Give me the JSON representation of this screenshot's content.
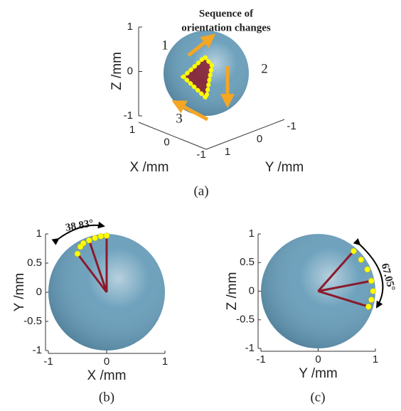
{
  "chart_data": [
    {
      "type": "sphere3d",
      "annotation": [
        "Sequence of",
        "orientation changes"
      ],
      "steps": [
        "1",
        "2",
        "3"
      ],
      "xlabel": "X /mm",
      "ylabel": "Y /mm",
      "zlabel": "Z /mm",
      "xlim": [
        -1,
        1
      ],
      "ylim": [
        -1,
        1
      ],
      "zlim": [
        -1,
        1
      ],
      "xticks": [
        1,
        0,
        -1
      ],
      "yticks": [
        -1,
        0,
        1
      ],
      "zticks": [
        -1,
        0,
        1
      ],
      "sphere_color": "#5f98b6",
      "arrow_color": "#f5a623",
      "caption": "(a)"
    },
    {
      "type": "sphere",
      "xlabel": "X /mm",
      "ylabel": "Y /mm",
      "annotation": "38.83°",
      "xlim": [
        -1,
        1
      ],
      "ylim": [
        -1,
        1
      ],
      "xticks": [
        -1,
        0,
        1
      ],
      "yticks": [
        -1,
        -0.5,
        0,
        0.5,
        1
      ],
      "sphere_color": "#5f98b6",
      "vector_color": "#8b1a2b",
      "series": [
        {
          "color": "#ffff00",
          "x": [
            0,
            -0.1,
            -0.2,
            -0.3,
            -0.4,
            -0.45,
            -0.5
          ],
          "values": [
            0.97,
            0.96,
            0.93,
            0.89,
            0.84,
            0.78,
            0.66
          ]
        }
      ],
      "caption": "(b)"
    },
    {
      "type": "sphere",
      "xlabel": "Y /mm",
      "ylabel": "Z /mm",
      "annotation": "67.05°",
      "xlim": [
        -1,
        1
      ],
      "ylim": [
        -1,
        1
      ],
      "xticks": [
        -1,
        0,
        1
      ],
      "yticks": [
        -1,
        -0.5,
        0,
        0.5,
        1
      ],
      "sphere_color": "#5f98b6",
      "vector_color": "#8b1a2b",
      "series": [
        {
          "color": "#ffff00",
          "x": [
            0.62,
            0.75,
            0.86,
            0.93,
            0.96,
            0.93,
            0.88
          ],
          "values": [
            0.7,
            0.55,
            0.38,
            0.18,
            0,
            -0.15,
            -0.27
          ]
        }
      ],
      "caption": "(c)"
    }
  ]
}
